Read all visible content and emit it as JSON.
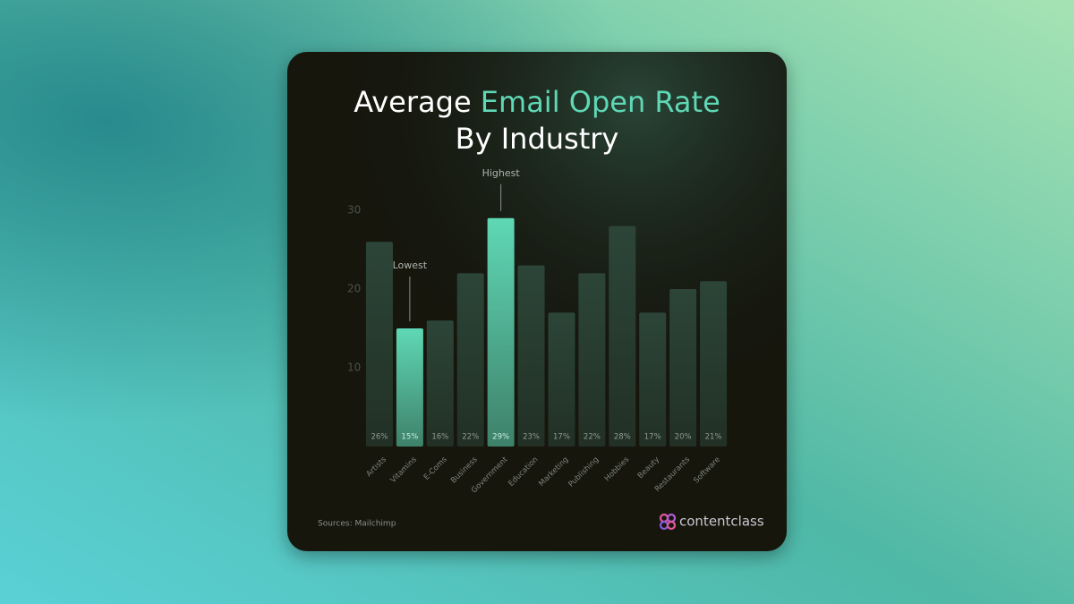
{
  "chart_data": {
    "type": "bar",
    "title": [
      "Average",
      "Email Open Rate",
      "By Industry"
    ],
    "categories": [
      "Artists",
      "Vitamins",
      "E-Coms",
      "Business",
      "Government",
      "Education",
      "Marketing",
      "Publishing",
      "Hobbies",
      "Beauty",
      "Restaurants",
      "Software"
    ],
    "values": [
      26,
      15,
      16,
      22,
      29,
      23,
      17,
      22,
      28,
      17,
      20,
      21
    ],
    "value_labels": [
      "26%",
      "15%",
      "16%",
      "22%",
      "29%",
      "23%",
      "17%",
      "22%",
      "28%",
      "17%",
      "20%",
      "21%"
    ],
    "color": "#2c4538",
    "highlight_color": "#5fd8b5",
    "ylim": [
      0,
      30
    ],
    "yticks": [
      10,
      20,
      30
    ],
    "grid": false,
    "annotations": [
      {
        "text": "Lowest",
        "category": "Vitamins"
      },
      {
        "text": "Highest",
        "category": "Government"
      }
    ],
    "source": "Sources: Mailchimp",
    "brand": "contentclass"
  }
}
